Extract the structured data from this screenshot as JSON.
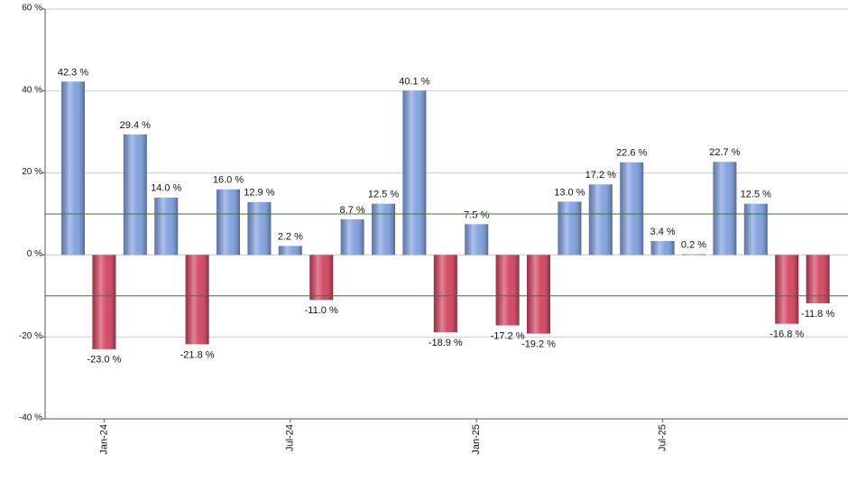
{
  "chart_data": {
    "type": "bar",
    "categories": [
      null,
      "Jan-24",
      null,
      null,
      null,
      null,
      null,
      "Jul-24",
      null,
      null,
      null,
      null,
      null,
      "Jan-25",
      null,
      null,
      null,
      null,
      null,
      "Jul-25",
      null,
      null,
      null,
      null,
      null
    ],
    "values": [
      42.3,
      -23.0,
      29.4,
      14.0,
      -21.8,
      16.0,
      12.9,
      2.2,
      -11.0,
      8.7,
      12.5,
      40.1,
      -18.9,
      7.5,
      -17.2,
      -19.2,
      13.0,
      17.2,
      22.6,
      3.4,
      0.2,
      22.7,
      12.5,
      -16.8,
      -11.8
    ],
    "value_labels": [
      "42.3 %",
      "-23.0 %",
      "29.4 %",
      "14.0 %",
      "-21.8 %",
      "16.0 %",
      "12.9 %",
      "2.2 %",
      "-11.0 %",
      "8.7 %",
      "12.5 %",
      "40.1 %",
      "-18.9 %",
      "7.5 %",
      "-17.2 %",
      "-19.2 %",
      "13.0 %",
      "17.2 %",
      "22.6 %",
      "3.4 %",
      "0.2 %",
      "22.7 %",
      "12.5 %",
      "-16.8 %",
      "-11.8 %"
    ],
    "positive_color": "#7f9fe0",
    "negative_color": "#d3405e",
    "reference_lines": [
      10,
      -10
    ],
    "reference_color": "#2e7d2e",
    "ylim": [
      -40,
      60
    ],
    "yticks": [
      {
        "value": -40,
        "label": "-40 %"
      },
      {
        "value": -20,
        "label": "-20 %"
      },
      {
        "value": 0,
        "label": "0 %"
      },
      {
        "value": 20,
        "label": "20 %"
      },
      {
        "value": 40,
        "label": "40 %"
      },
      {
        "value": 60,
        "label": "60 %"
      }
    ],
    "grid": true
  }
}
